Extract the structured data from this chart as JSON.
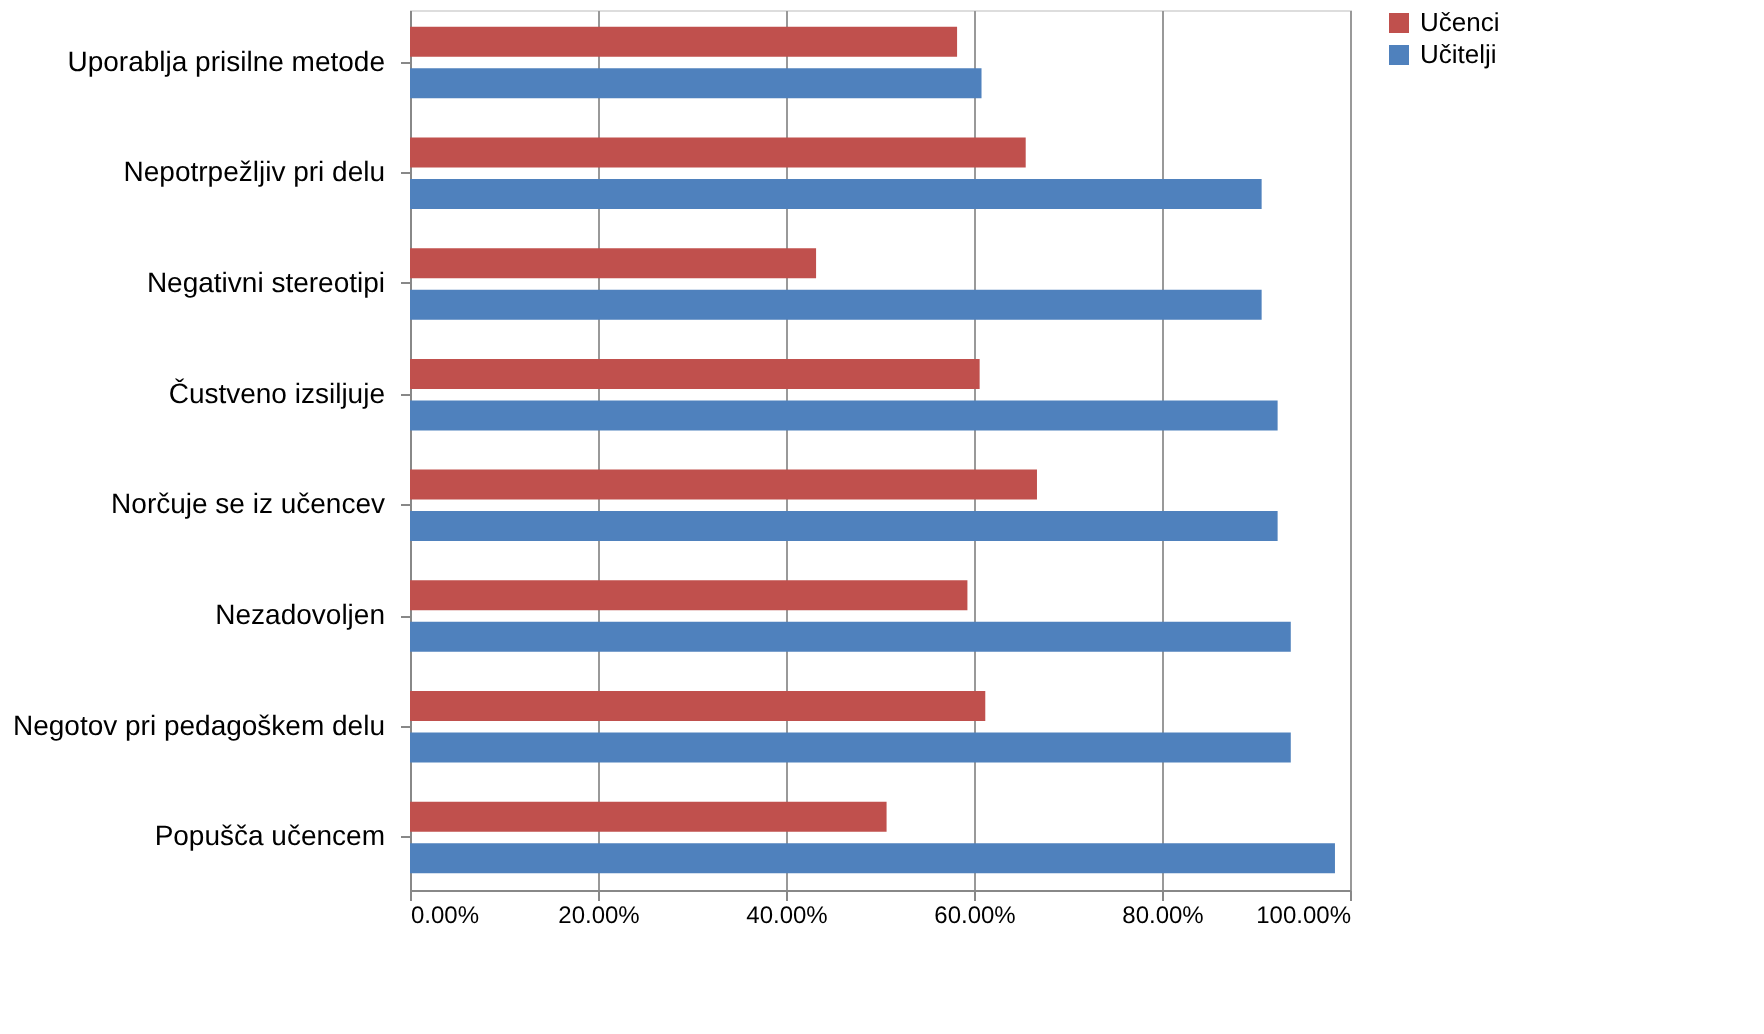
{
  "chart_data": {
    "type": "bar",
    "orientation": "horizontal",
    "categories": [
      "Uporablja prisilne metode",
      "Nepotrpežljiv pri delu",
      "Negativni stereotipi",
      "Čustveno izsiljuje",
      "Norčuje se iz učencev",
      "Nezadovoljen",
      "Negotov pri pedagoškem delu",
      "Popušča učencem"
    ],
    "series": [
      {
        "name": "Učenci",
        "color": "#c0504d",
        "values": [
          58.2,
          65.5,
          43.2,
          60.6,
          66.7,
          59.3,
          61.2,
          50.7
        ]
      },
      {
        "name": "Učitelji",
        "color": "#4f81bd",
        "values": [
          60.8,
          90.6,
          90.6,
          92.3,
          92.3,
          93.7,
          93.7,
          98.4
        ]
      }
    ],
    "xlim": [
      0,
      100
    ],
    "xticks": [
      {
        "value": 0,
        "label": "0.00%"
      },
      {
        "value": 20,
        "label": "20.00%"
      },
      {
        "value": 40,
        "label": "40.00%"
      },
      {
        "value": 60,
        "label": "60.00%"
      },
      {
        "value": 80,
        "label": "80.00%"
      },
      {
        "value": 100,
        "label": "100.00%"
      }
    ],
    "grid": "x",
    "legend": "right"
  }
}
